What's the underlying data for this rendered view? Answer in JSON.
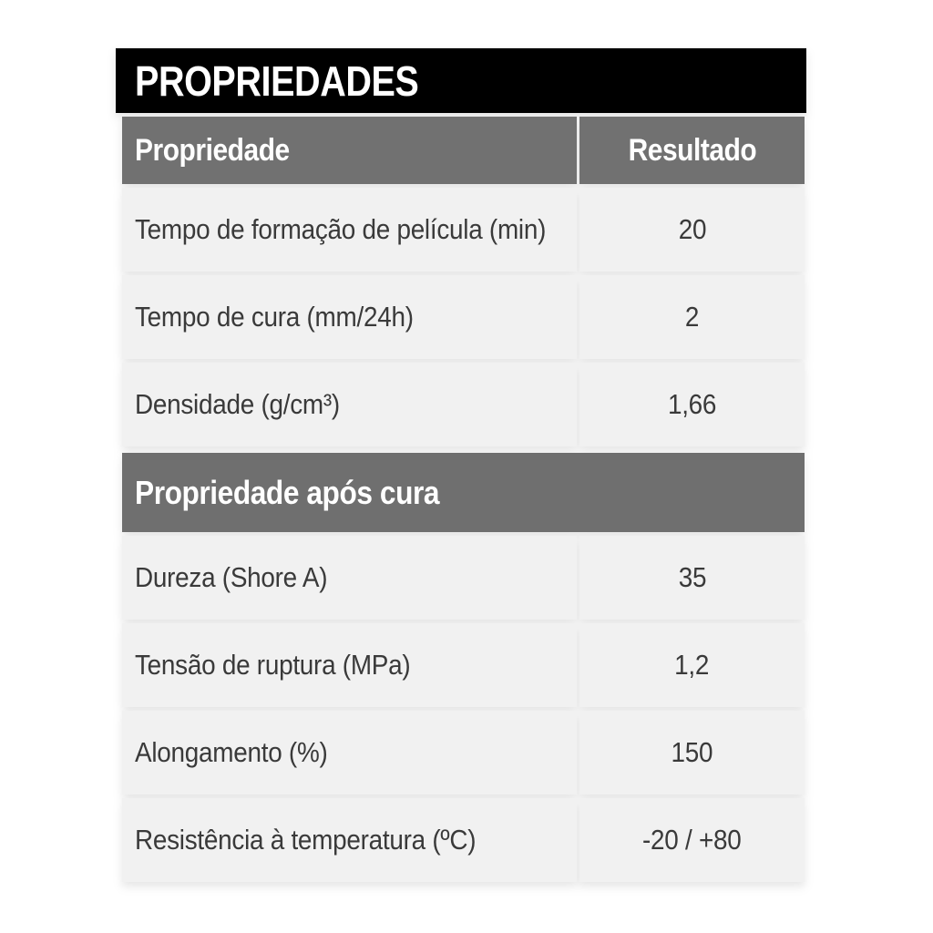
{
  "table": {
    "title": "PROPRIEDADES",
    "columns": {
      "property": "Propriedade",
      "result": "Resultado"
    },
    "sections": [
      {
        "rows": [
          {
            "label": "Tempo de formação de película (min)",
            "value": "20"
          },
          {
            "label": "Tempo de cura (mm/24h)",
            "value": "2"
          },
          {
            "label": "Densidade (g/cm³)",
            "value": "1,66"
          }
        ]
      },
      {
        "header": "Propriedade após cura",
        "rows": [
          {
            "label": "Dureza (Shore A)",
            "value": "35"
          },
          {
            "label": "Tensão de ruptura (MPa)",
            "value": "1,2"
          },
          {
            "label": "Alongamento (%)",
            "value": "150"
          },
          {
            "label": "Resistência à temperatura (ºC)",
            "value": "-20 / +80"
          }
        ]
      }
    ]
  },
  "colors": {
    "title_bar_bg": "#000000",
    "title_text": "#ffffff",
    "header_bg": "#717171",
    "header_text": "#ffffff",
    "section_bg": "#6f6f6f",
    "section_text": "#ffffff",
    "row_bg": "#f1f1f1",
    "row_text": "#3a3a3a",
    "page_bg": "#ffffff"
  }
}
